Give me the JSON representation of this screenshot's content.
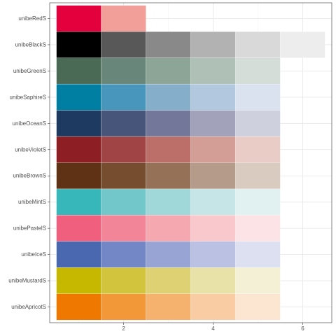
{
  "chart_data": {
    "type": "heatmap",
    "title": "",
    "xlabel": "",
    "ylabel": "",
    "x_ticks": [
      2,
      4,
      6
    ],
    "xlim": [
      0.35,
      6.65
    ],
    "grid": true,
    "legend": "none",
    "rows": [
      {
        "name": "unibeRedS",
        "colors": [
          "#E4003C",
          "#F29F99"
        ]
      },
      {
        "name": "unibeBlackS",
        "colors": [
          "#000000",
          "#585858",
          "#898989",
          "#B2B2B2",
          "#D9D9D9",
          "#EDEDED"
        ]
      },
      {
        "name": "unibeGreenS",
        "colors": [
          "#4B6A56",
          "#68877A",
          "#8DA597",
          "#AFC0B6",
          "#D4DDD8"
        ]
      },
      {
        "name": "unibeSaphireS",
        "colors": [
          "#007FA3",
          "#4996BC",
          "#85AECB",
          "#B1C8DE",
          "#D9E2EE"
        ]
      },
      {
        "name": "unibeOceanS",
        "colors": [
          "#1F3A60",
          "#47557A",
          "#73789B",
          "#A2A2BA",
          "#CFD0DE"
        ]
      },
      {
        "name": "unibeVioletS",
        "colors": [
          "#8C1E24",
          "#A14445",
          "#BB6F68",
          "#D39E96",
          "#E9CCC6"
        ]
      },
      {
        "name": "unibeBrownS",
        "colors": [
          "#5F3215",
          "#774D2F",
          "#947157",
          "#B59B89",
          "#D9CBC0"
        ]
      },
      {
        "name": "unibeMintS",
        "colors": [
          "#37B7B9",
          "#71C7C9",
          "#A0D8D9",
          "#C5E5E6",
          "#E1F0F1"
        ]
      },
      {
        "name": "unibePastelS",
        "colors": [
          "#F0607E",
          "#F28597",
          "#F6A8B1",
          "#F9C8CD",
          "#FCE3E6"
        ]
      },
      {
        "name": "unibeIceS",
        "colors": [
          "#4A68B0",
          "#7386C5",
          "#97A4D4",
          "#BAC1E2",
          "#DCE0F1"
        ]
      },
      {
        "name": "unibeMustardS",
        "colors": [
          "#C6B800",
          "#D3C43E",
          "#DED174",
          "#E8E1A8",
          "#F3F0D5"
        ]
      },
      {
        "name": "unibeApricotS",
        "colors": [
          "#EF7800",
          "#F29838",
          "#F5B26E",
          "#F9CCA3",
          "#FCE5D1"
        ]
      }
    ]
  }
}
